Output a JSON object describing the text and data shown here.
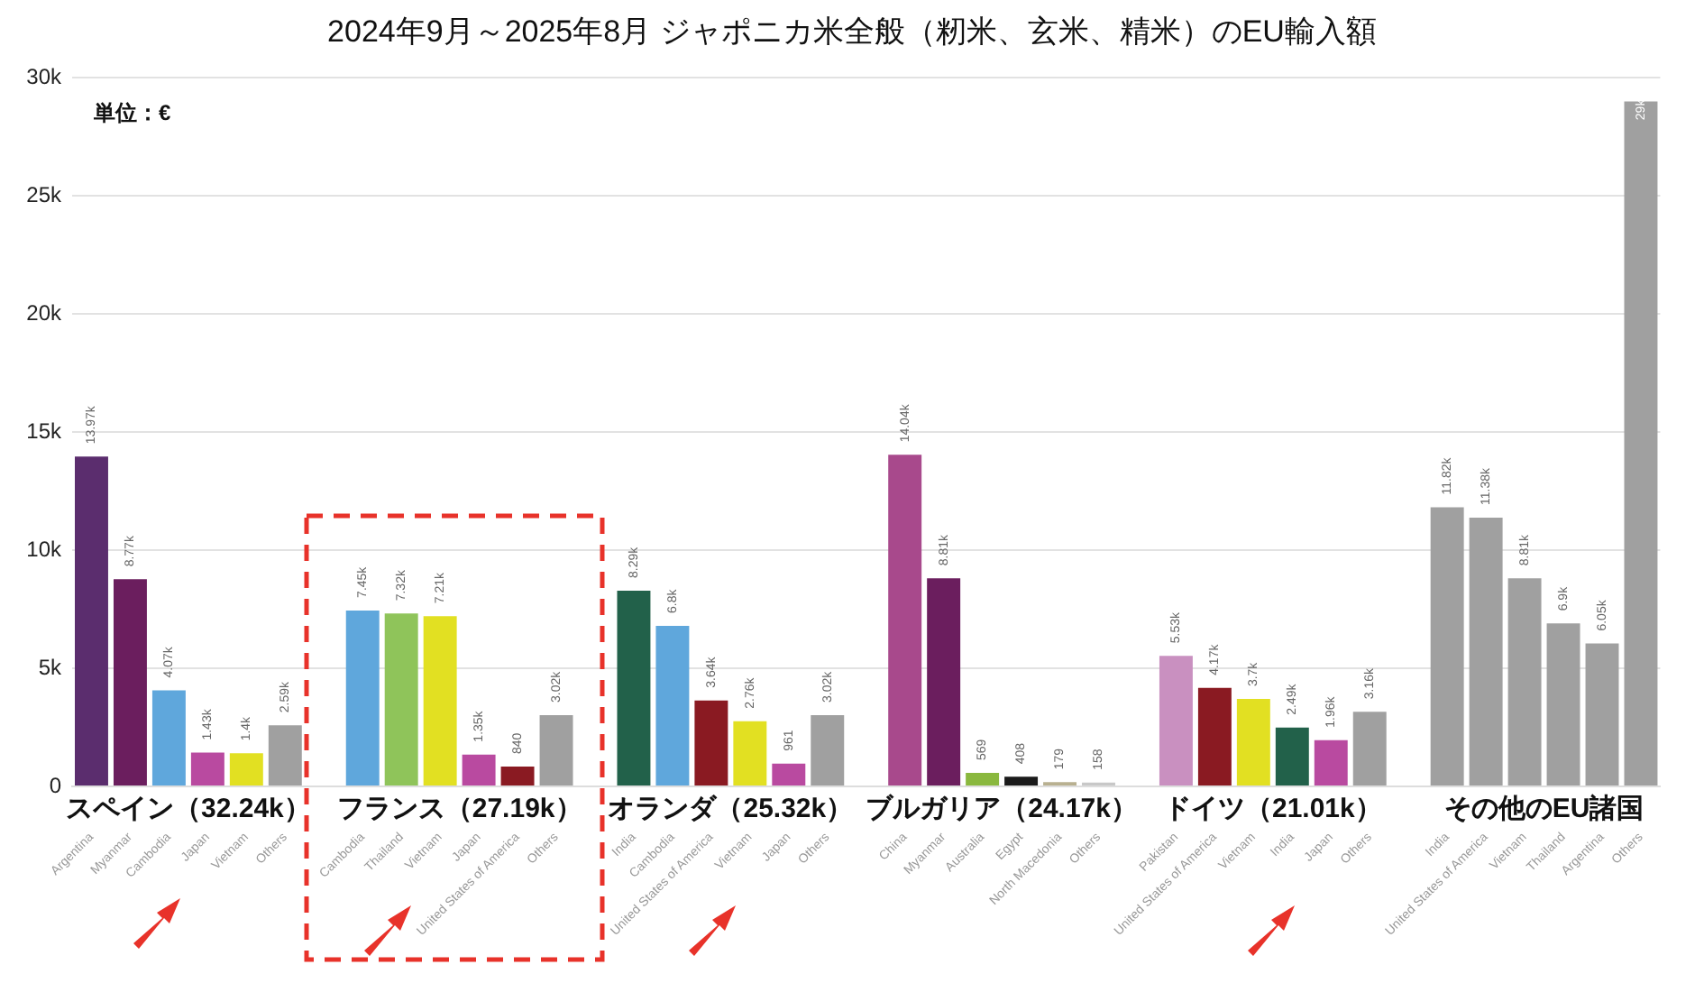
{
  "chart_data": {
    "type": "bar",
    "title": "2024年9月～2025年8月  ジャポニカ米全般（籾米、玄米、精米）のEU輸入額",
    "annotations": [
      "単位：€",
      "スペイン（32.24k）",
      "フランス（27.19k）",
      "オランダ（25.32k）",
      "ブルガリア（24.17k）",
      "ドイツ（21.01k）",
      "その他のEU諸国"
    ],
    "categories": [
      "Argentina",
      "Myanmar",
      "Cambodia",
      "Japan",
      "Vietnam",
      "Others",
      null,
      "Cambodia",
      "Thailand",
      "Vietnam",
      "Japan",
      "United States of America",
      "Others",
      null,
      "India",
      "Cambodia",
      "United States of America",
      "Vietnam",
      "Japan",
      "Others",
      null,
      "China",
      "Myanmar",
      "Australia",
      "Egypt",
      "North Macedonia",
      "Others",
      null,
      "Pakistan",
      "United States of America",
      "Vietnam",
      "India",
      "Japan",
      "Others",
      null,
      "India",
      "United States of America",
      "Vietnam",
      "Thailand",
      "Argentina",
      "Others"
    ],
    "values": [
      13970,
      8770,
      4070,
      1430,
      1400,
      2590,
      null,
      7450,
      7320,
      7210,
      1350,
      840,
      3020,
      null,
      8290,
      6800,
      3640,
      2760,
      961,
      3020,
      null,
      14040,
      8810,
      569,
      408,
      179,
      158,
      null,
      5530,
      4170,
      3700,
      2490,
      1960,
      3160,
      null,
      11820,
      11380,
      8810,
      6900,
      6050,
      29000
    ],
    "value_labels": [
      "13.97k",
      "8.77k",
      "4.07k",
      "1.43k",
      "1.4k",
      "2.59k",
      null,
      "7.45k",
      "7.32k",
      "7.21k",
      "1.35k",
      "840",
      "3.02k",
      null,
      "8.29k",
      "6.8k",
      "3.64k",
      "2.76k",
      "961",
      "3.02k",
      null,
      "14.04k",
      "8.81k",
      "569",
      "408",
      "179",
      "158",
      null,
      "5.53k",
      "4.17k",
      "3.7k",
      "2.49k",
      "1.96k",
      "3.16k",
      null,
      "11.82k",
      "11.38k",
      "8.81k",
      "6.9k",
      "6.05k",
      "29k"
    ],
    "colors": [
      "#5b2d6e",
      "#6b1e5e",
      "#5fa7dc",
      "#b94aa0",
      "#e2e022",
      "#a0a0a0",
      null,
      "#5fa7dc",
      "#8fc45a",
      "#e2e022",
      "#b94aa0",
      "#8a1a22",
      "#a0a0a0",
      null,
      "#22614a",
      "#5fa7dc",
      "#8a1a22",
      "#e2e022",
      "#b94aa0",
      "#a0a0a0",
      null,
      "#a8498c",
      "#6b1e5e",
      "#8ab83e",
      "#1a1a1a",
      "#b8b090",
      "#c8c8c8",
      null,
      "#c990c0",
      "#8a1a22",
      "#e2e022",
      "#22614a",
      "#b94aa0",
      "#a0a0a0",
      null,
      "#a0a0a0",
      "#a0a0a0",
      "#a0a0a0",
      "#a0a0a0",
      "#a0a0a0",
      "#a0a0a0"
    ],
    "ylim": [
      0,
      30000
    ],
    "yticks": [
      {
        "value": 0,
        "label": "0"
      },
      {
        "value": 5000,
        "label": "5k"
      },
      {
        "value": 10000,
        "label": "10k"
      },
      {
        "value": 15000,
        "label": "15k"
      },
      {
        "value": 20000,
        "label": "20k"
      },
      {
        "value": 25000,
        "label": "25k"
      },
      {
        "value": 30000,
        "label": "30k"
      }
    ],
    "grid": "y"
  }
}
